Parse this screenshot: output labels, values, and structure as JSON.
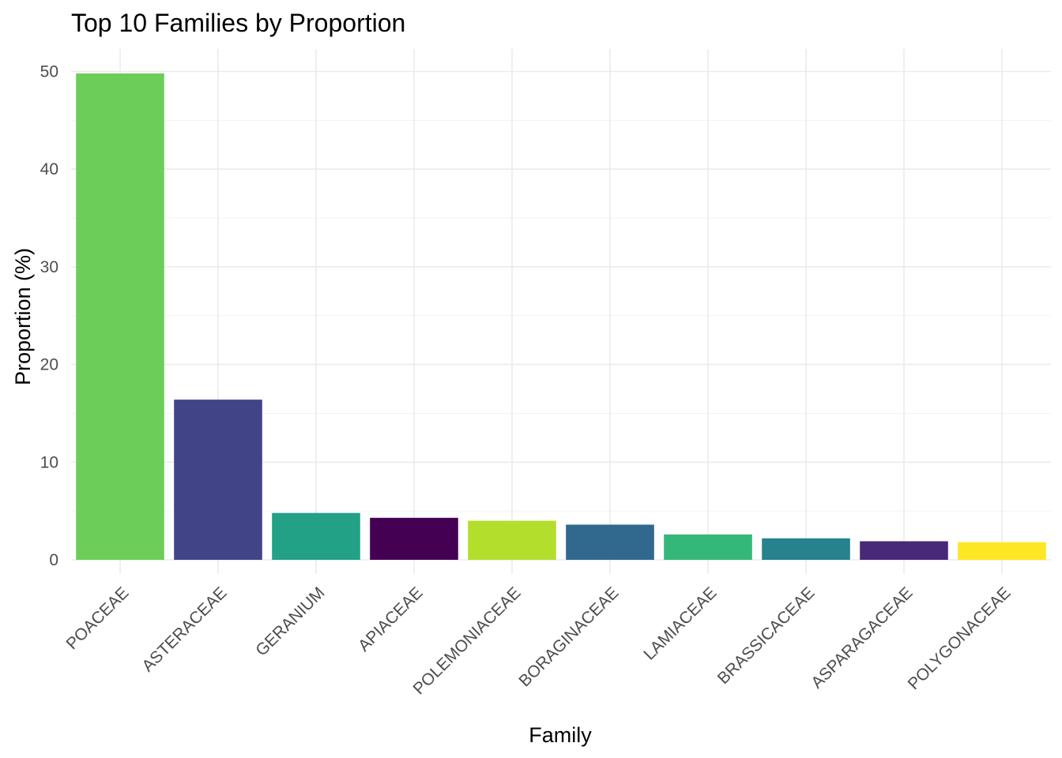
{
  "chart_data": {
    "type": "bar",
    "title": "Top 10 Families by Proportion",
    "xlabel": "Family",
    "ylabel": "Proportion (%)",
    "ylim": [
      0,
      52.5
    ],
    "yticks": [
      0,
      10,
      20,
      30,
      40,
      50
    ],
    "grid": true,
    "legend": "none",
    "categories": [
      "POACEAE",
      "ASTERACEAE",
      "GERANIUM",
      "APIACEAE",
      "POLEMONIACEAE",
      "BORAGINACEAE",
      "LAMIACEAE",
      "BRASSICACEAE",
      "ASPARAGACEAE",
      "POLYGONACEAE"
    ],
    "values": [
      49.8,
      16.4,
      4.8,
      4.3,
      4.0,
      3.6,
      2.6,
      2.2,
      1.9,
      1.8
    ],
    "colors": [
      "#6CCE59",
      "#414487",
      "#22A187",
      "#440154",
      "#B4DE2C",
      "#31688E",
      "#35B779",
      "#26828E",
      "#482878",
      "#FDE725"
    ]
  }
}
